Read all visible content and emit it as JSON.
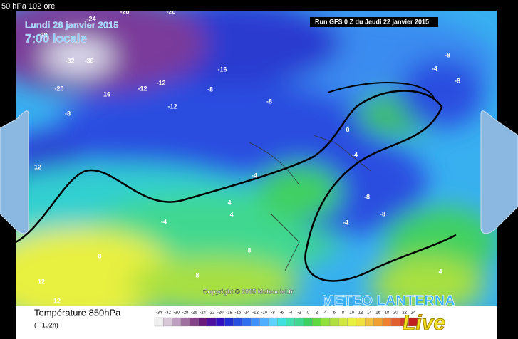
{
  "top_bar": {
    "text": "50 hPa 102 ore"
  },
  "map": {
    "date": "Lundi 26 janvier 2015",
    "time": "7:00 locale",
    "run": "Run GFS 0 Z du Jeudi 22 janvier 2015",
    "copyright": "Copyright © 2015 Meteociel.fr",
    "contour_labels": [
      -24,
      -20,
      -20,
      -28,
      -32,
      -36,
      -20,
      -16,
      -12,
      -12,
      -8,
      -12,
      -8,
      -8,
      -8,
      -4,
      -8,
      -4,
      -4,
      4,
      4,
      0,
      8,
      8,
      12,
      12,
      8,
      -8,
      -8,
      -4,
      4,
      12,
      -4,
      16
    ]
  },
  "legend": {
    "title": "Température 850hPa",
    "lead_time": "(+ 102h)",
    "scale": [
      -34,
      -32,
      -30,
      -28,
      -26,
      -24,
      -22,
      -20,
      -18,
      -16,
      -14,
      -12,
      -10,
      -8,
      -6,
      -4,
      -2,
      0,
      2,
      4,
      6,
      8,
      10,
      12,
      14,
      16,
      18,
      20,
      22,
      24
    ]
  },
  "watermark": {
    "brand": "METEO LANTERNA",
    "live": "Live"
  }
}
